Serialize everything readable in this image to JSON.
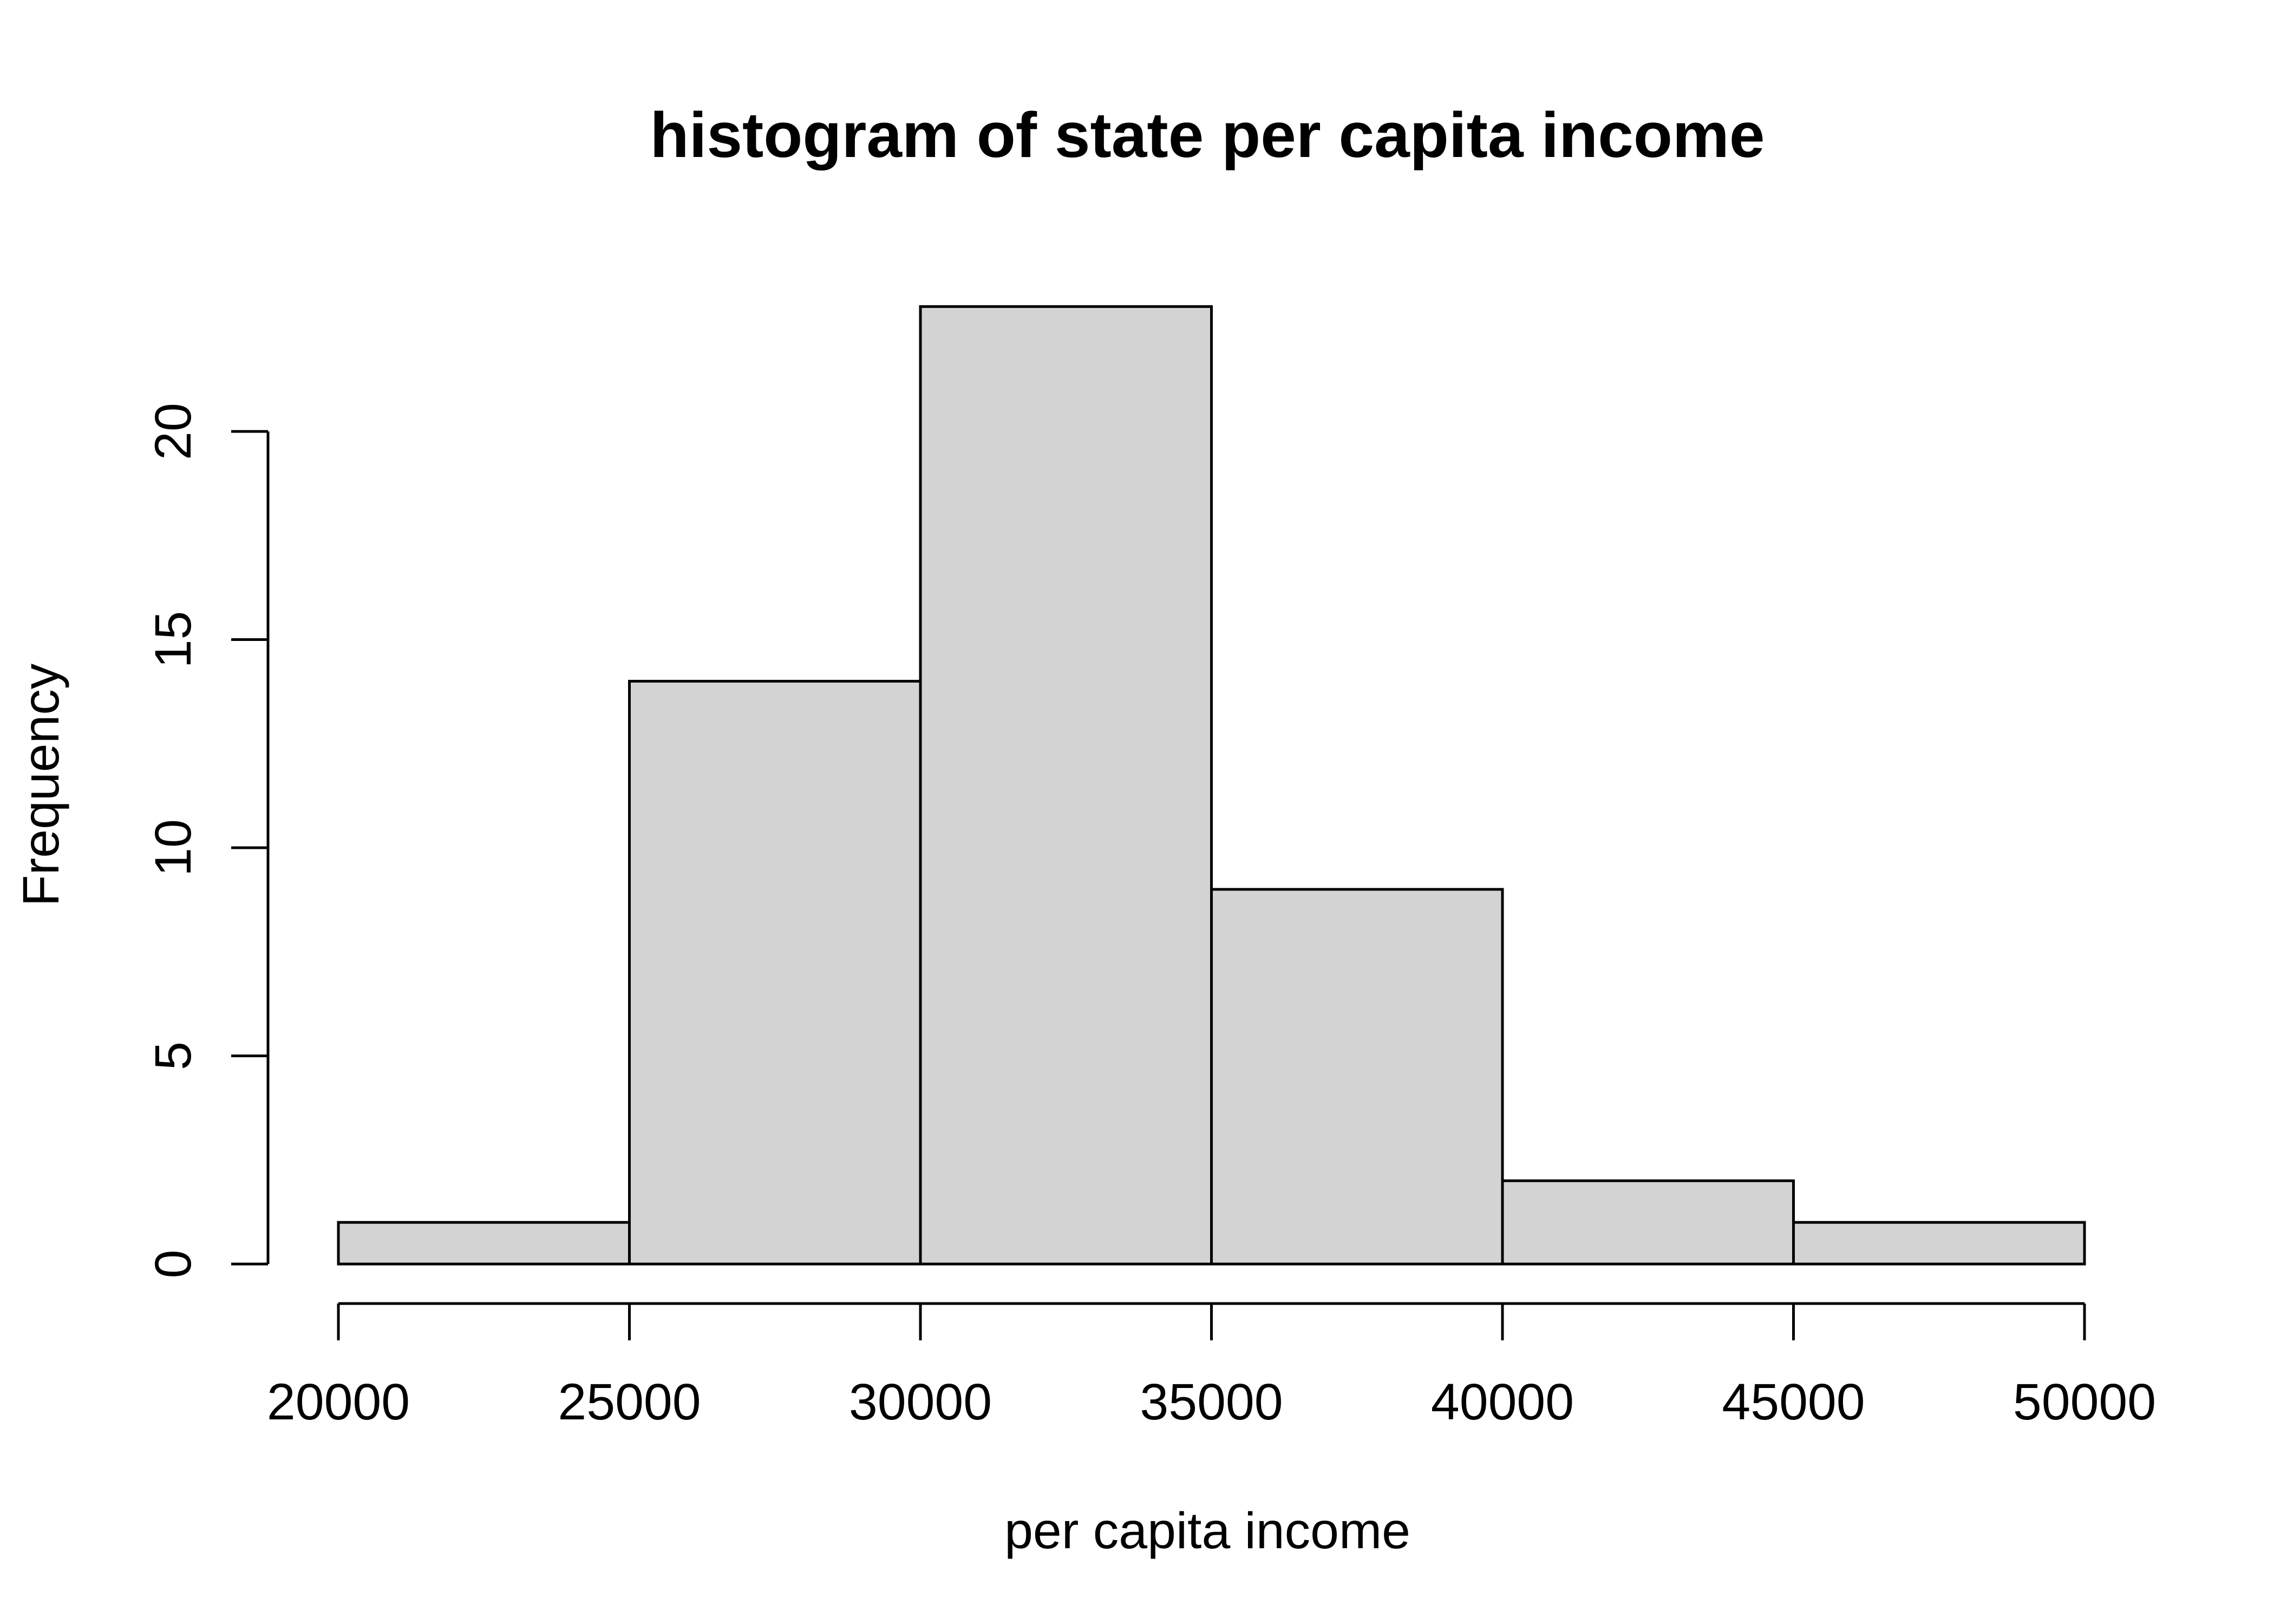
{
  "chart_data": {
    "type": "bar",
    "title": "histogram of state per capita income",
    "xlabel": "per capita income",
    "ylabel": "Frequency",
    "bins": [
      {
        "from": 20000,
        "to": 25000,
        "count": 1
      },
      {
        "from": 25000,
        "to": 30000,
        "count": 14
      },
      {
        "from": 30000,
        "to": 35000,
        "count": 23
      },
      {
        "from": 35000,
        "to": 40000,
        "count": 9
      },
      {
        "from": 40000,
        "to": 45000,
        "count": 2
      },
      {
        "from": 45000,
        "to": 50000,
        "count": 1
      }
    ],
    "x_ticks": [
      "20000",
      "25000",
      "30000",
      "35000",
      "40000",
      "45000",
      "50000"
    ],
    "y_ticks": [
      "0",
      "5",
      "10",
      "15",
      "20"
    ],
    "xlim": [
      20000,
      50000
    ],
    "ylim": [
      0,
      23
    ],
    "bar_color": "#d3d3d3",
    "grid": false,
    "legend": "none"
  }
}
